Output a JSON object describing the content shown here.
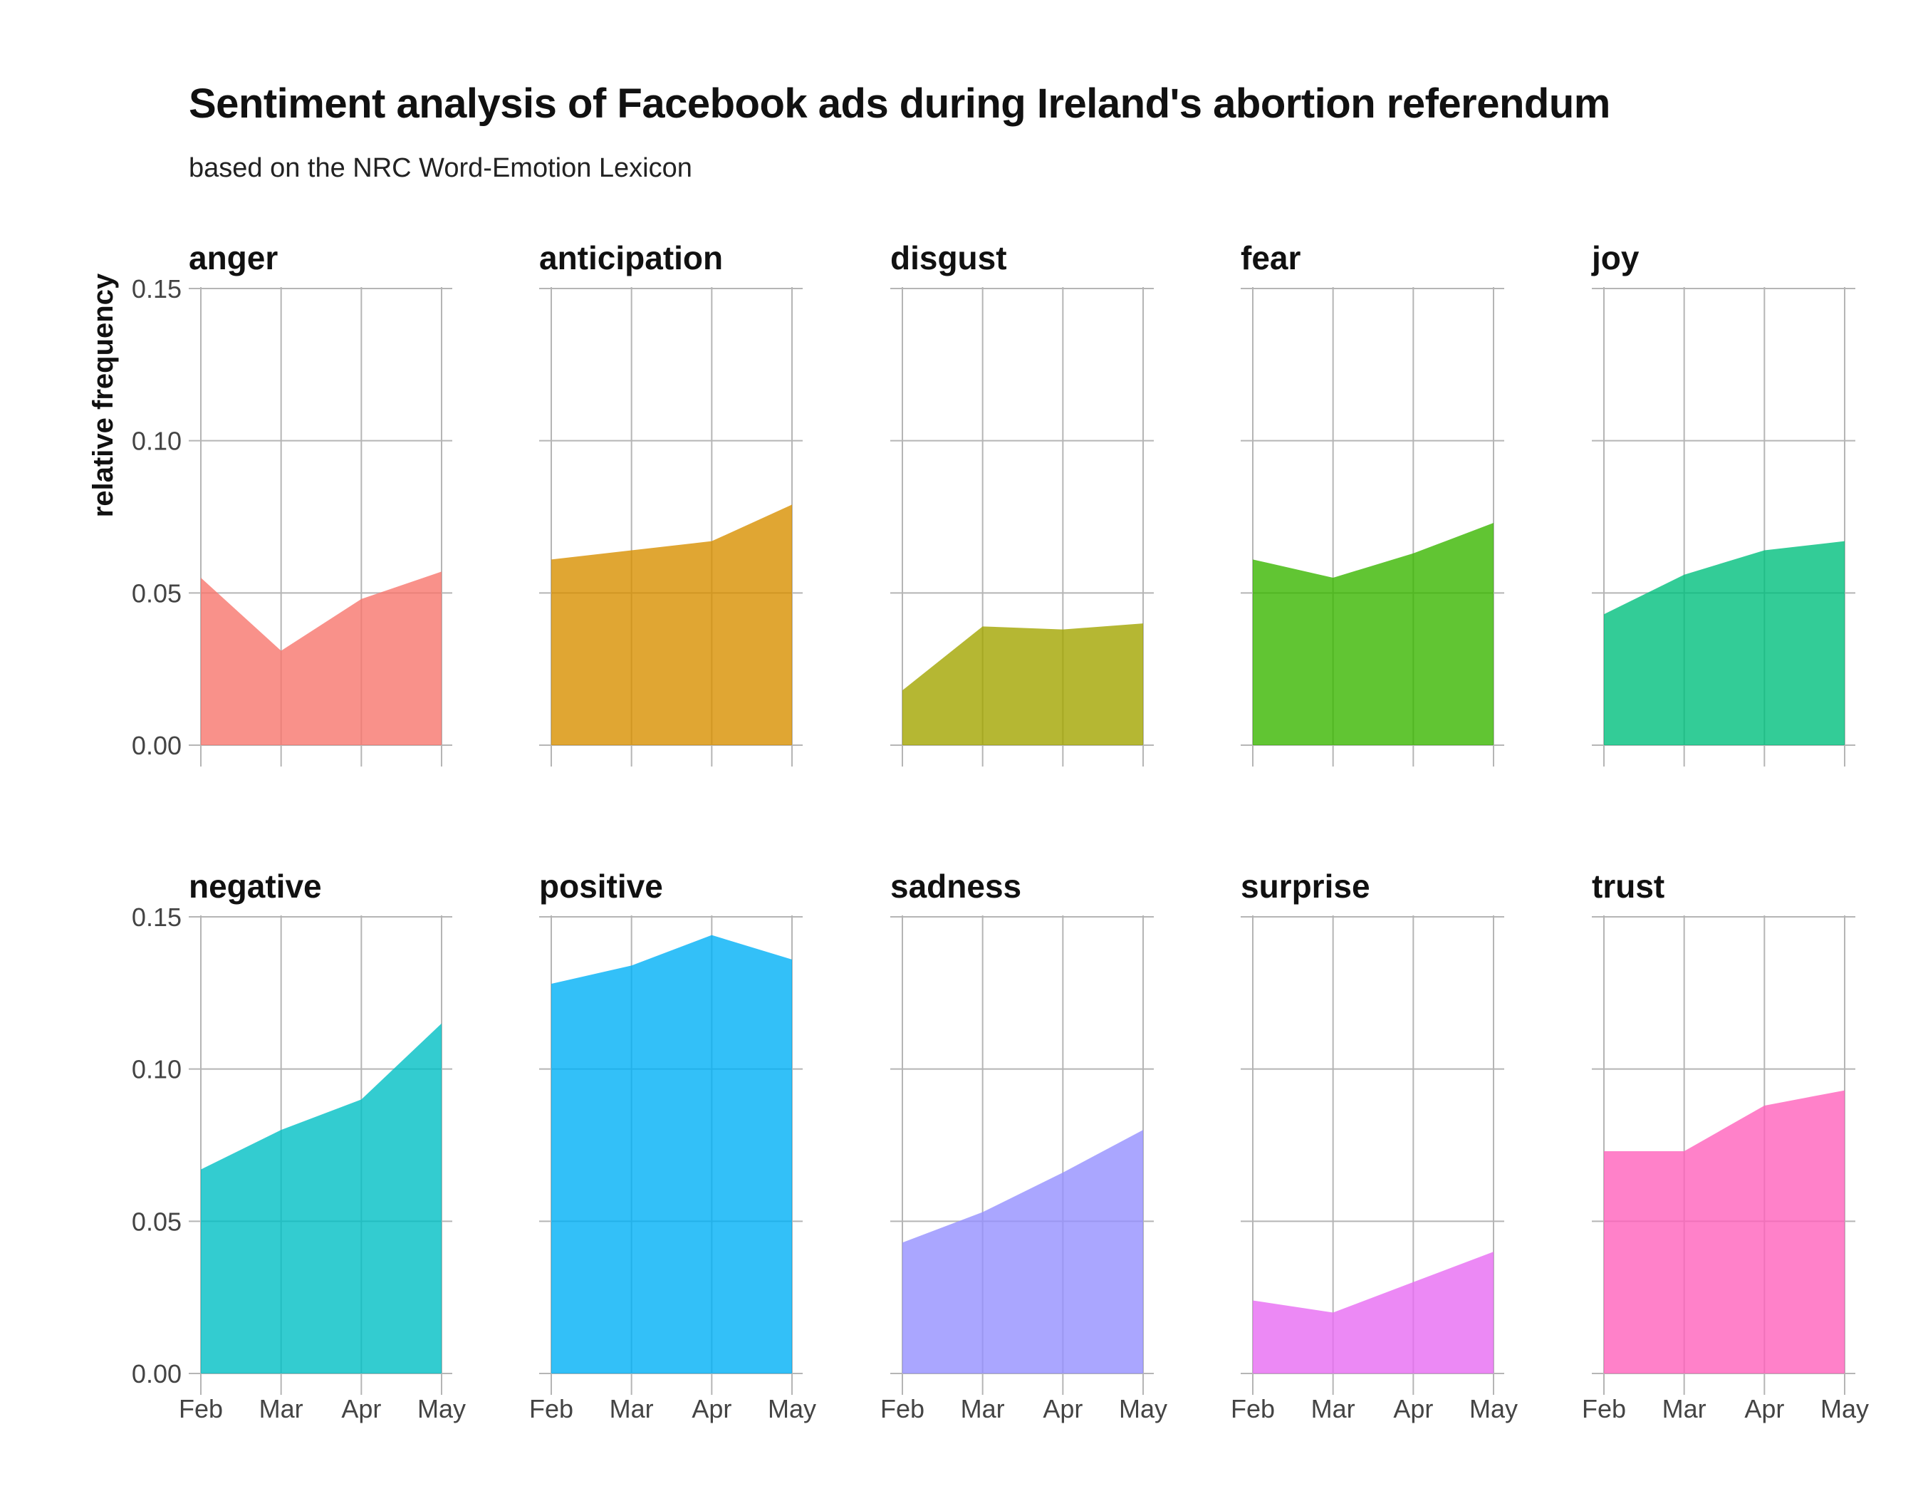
{
  "chart_data": {
    "type": "area",
    "title": "Sentiment analysis of Facebook ads during Ireland's abortion referendum",
    "subtitle": "based on the NRC Word-Emotion Lexicon",
    "ylabel": "relative frequency",
    "xlabel": "",
    "x": [
      "Feb",
      "Mar",
      "Apr",
      "May"
    ],
    "ylim": [
      0,
      0.15
    ],
    "y_ticks": [
      "0.00",
      "0.05",
      "0.10",
      "0.15"
    ],
    "grid": true,
    "legend": "none",
    "facets": [
      {
        "name": "anger",
        "color": "#F8766D",
        "values": [
          0.055,
          0.031,
          0.048,
          0.057
        ]
      },
      {
        "name": "anticipation",
        "color": "#D89000",
        "values": [
          0.061,
          0.064,
          0.067,
          0.079
        ]
      },
      {
        "name": "disgust",
        "color": "#A3A500",
        "values": [
          0.018,
          0.039,
          0.038,
          0.04
        ]
      },
      {
        "name": "fear",
        "color": "#39B600",
        "values": [
          0.061,
          0.055,
          0.063,
          0.073
        ]
      },
      {
        "name": "joy",
        "color": "#00BF7D",
        "values": [
          0.043,
          0.056,
          0.064,
          0.067
        ]
      },
      {
        "name": "negative",
        "color": "#00BFC4",
        "values": [
          0.067,
          0.08,
          0.09,
          0.115
        ]
      },
      {
        "name": "positive",
        "color": "#00B0F6",
        "values": [
          0.128,
          0.134,
          0.144,
          0.136
        ]
      },
      {
        "name": "sadness",
        "color": "#9590FF",
        "values": [
          0.043,
          0.053,
          0.066,
          0.08
        ]
      },
      {
        "name": "surprise",
        "color": "#E76BF3",
        "values": [
          0.024,
          0.02,
          0.03,
          0.04
        ]
      },
      {
        "name": "trust",
        "color": "#FF62BC",
        "values": [
          0.073,
          0.073,
          0.088,
          0.093
        ]
      }
    ]
  }
}
